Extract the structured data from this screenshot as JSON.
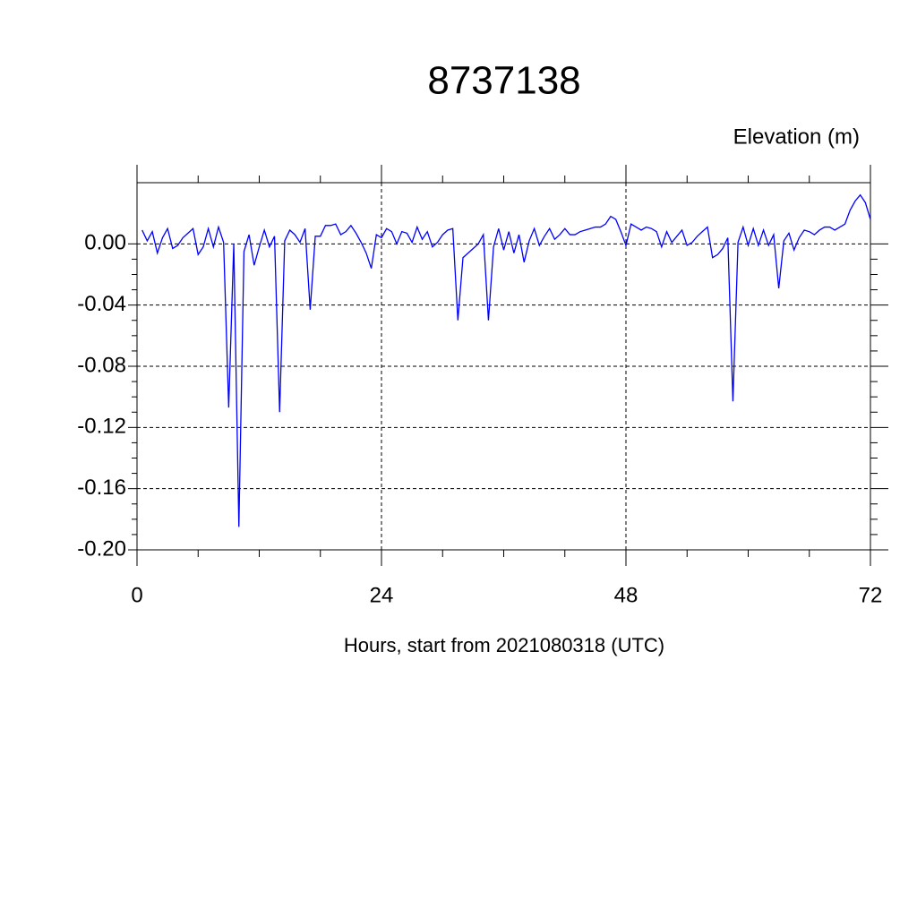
{
  "chart_data": {
    "type": "line",
    "title": "8737138",
    "subtitle": "Elevation (m)",
    "x_label": "Hours, start from 2021080318 (UTC)",
    "x": [
      0.5,
      1,
      1.5,
      2,
      2.5,
      3,
      3.5,
      4,
      4.5,
      5,
      5.5,
      6,
      6.5,
      7,
      7.5,
      8,
      8.5,
      9,
      9.5,
      10,
      10.5,
      11,
      11.5,
      12,
      12.5,
      13,
      13.5,
      14,
      14.5,
      15,
      15.5,
      16,
      16.5,
      17,
      17.5,
      18,
      18.5,
      19,
      19.5,
      20,
      20.5,
      21,
      21.5,
      22,
      22.5,
      23,
      23.5,
      24,
      24.5,
      25,
      25.5,
      26,
      26.5,
      27,
      27.5,
      28,
      28.5,
      29,
      29.5,
      30,
      30.5,
      31,
      31.5,
      32,
      32.5,
      33,
      33.5,
      34,
      34.5,
      35,
      35.5,
      36,
      36.5,
      37,
      37.5,
      38,
      38.5,
      39,
      39.5,
      40,
      40.5,
      41,
      41.5,
      42,
      42.5,
      43,
      43.5,
      44,
      44.5,
      45,
      45.5,
      46,
      46.5,
      47,
      47.5,
      48,
      48.5,
      49,
      49.5,
      50,
      50.5,
      51,
      51.5,
      52,
      52.5,
      53,
      53.5,
      54,
      54.5,
      55,
      55.5,
      56,
      56.5,
      57,
      57.5,
      58,
      58.5,
      59,
      59.5,
      60,
      60.5,
      61,
      61.5,
      62,
      62.5,
      63,
      63.5,
      64,
      64.5,
      65,
      65.5,
      66,
      66.5,
      67,
      67.5,
      68,
      68.5,
      69,
      69.5,
      70,
      70.5,
      71,
      71.5,
      72
    ],
    "series": [
      {
        "color": "#0000ff",
        "values": [
          0.009,
          0.002,
          0.008,
          -0.006,
          0.004,
          0.01,
          -0.003,
          -0.001,
          0.004,
          0.007,
          0.01,
          -0.007,
          -0.002,
          0.01,
          -0.002,
          0.011,
          0.001,
          -0.107,
          0.0,
          -0.185,
          -0.005,
          0.006,
          -0.014,
          -0.002,
          0.009,
          -0.002,
          0.005,
          -0.11,
          0.002,
          0.009,
          0.006,
          0.001,
          0.01,
          -0.043,
          0.005,
          0.005,
          0.012,
          0.012,
          0.013,
          0.006,
          0.008,
          0.012,
          0.007,
          0.001,
          -0.006,
          -0.016,
          0.006,
          0.004,
          0.01,
          0.008,
          0.0,
          0.008,
          0.007,
          0.001,
          0.011,
          0.003,
          0.008,
          -0.002,
          0.001,
          0.006,
          0.009,
          0.01,
          -0.05,
          -0.009,
          -0.006,
          -0.003,
          0.0,
          0.006,
          -0.05,
          -0.002,
          0.01,
          -0.004,
          0.008,
          -0.006,
          0.006,
          -0.012,
          0.002,
          0.01,
          -0.001,
          0.005,
          0.01,
          0.003,
          0.006,
          0.01,
          0.006,
          0.006,
          0.008,
          0.009,
          0.01,
          0.011,
          0.011,
          0.013,
          0.018,
          0.016,
          0.008,
          -0.001,
          0.013,
          0.011,
          0.009,
          0.011,
          0.01,
          0.008,
          -0.002,
          0.008,
          0.001,
          0.005,
          0.009,
          -0.001,
          0.001,
          0.005,
          0.008,
          0.011,
          -0.009,
          -0.007,
          -0.003,
          0.004,
          -0.103,
          0.001,
          0.011,
          -0.001,
          0.01,
          -0.001,
          0.009,
          -0.001,
          0.006,
          -0.029,
          0.002,
          0.007,
          -0.004,
          0.004,
          0.009,
          0.008,
          0.006,
          0.009,
          0.011,
          0.011,
          0.009,
          0.011,
          0.013,
          0.022,
          0.028,
          0.032,
          0.027,
          0.016
        ]
      }
    ],
    "xlim": [
      0,
      72
    ],
    "xticks": [
      0,
      24,
      48,
      72
    ],
    "ylim": [
      -0.2,
      0.04
    ],
    "yticks": [
      {
        "value": 0,
        "label": "0.00"
      },
      {
        "value": -0.04,
        "label": "-0.04"
      },
      {
        "value": -0.08,
        "label": "-0.08"
      },
      {
        "value": -0.12,
        "label": "-0.12"
      },
      {
        "value": -0.16,
        "label": "-0.16"
      },
      {
        "value": -0.2,
        "label": "-0.20"
      }
    ],
    "grid": true
  }
}
